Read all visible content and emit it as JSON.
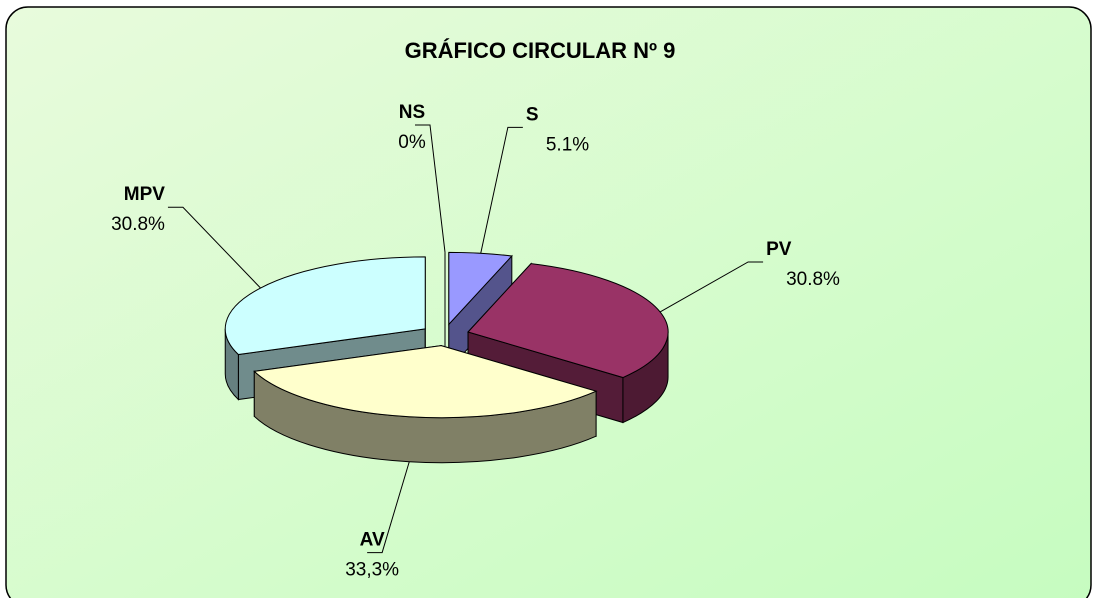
{
  "chart_data": {
    "type": "pie3d",
    "title": "GRÁFICO CIRCULAR Nº 9",
    "categories": [
      "NS",
      "S",
      "PV",
      "AV",
      "MPV"
    ],
    "values": [
      0,
      5.1,
      30.8,
      33.3,
      30.8
    ],
    "value_labels": [
      "0%",
      "5.1%",
      "30.8%",
      "33,3%",
      "30.8%"
    ],
    "colors": [
      "#ffffff",
      "#9999ff",
      "#993366",
      "#ffffcc",
      "#ccffff"
    ]
  }
}
